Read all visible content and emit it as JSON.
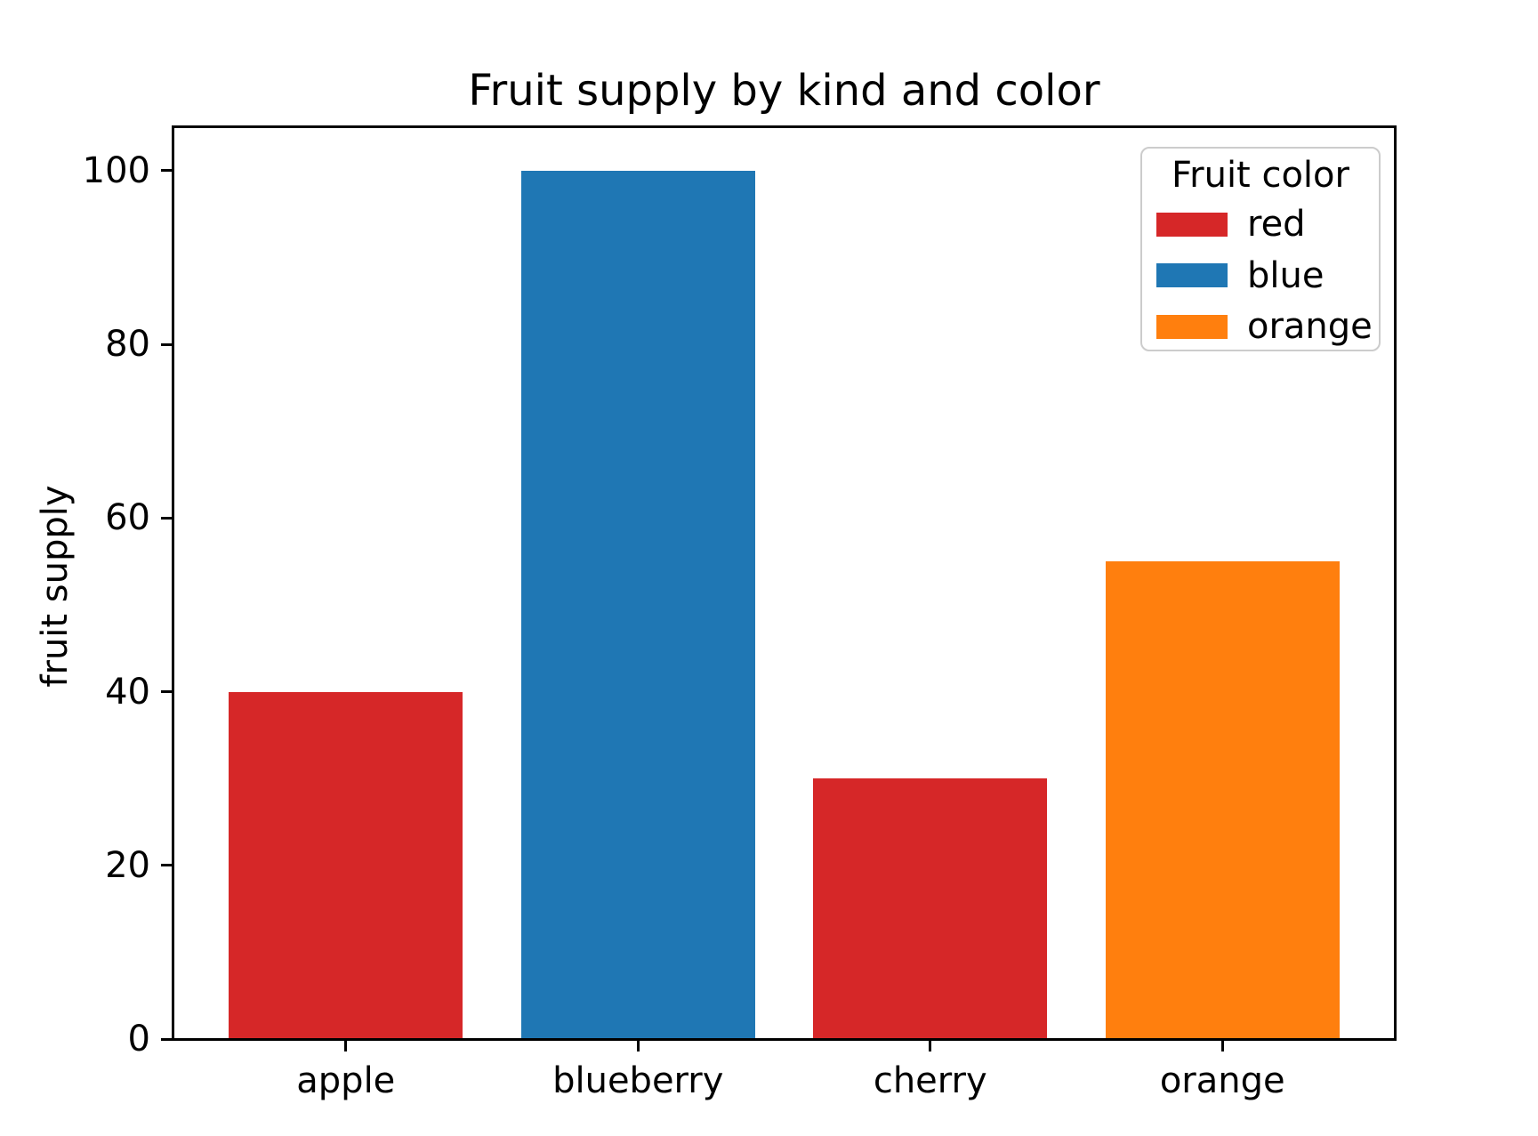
{
  "chart_data": {
    "type": "bar",
    "title": "Fruit supply by kind and color",
    "xlabel": "",
    "ylabel": "fruit supply",
    "categories": [
      "apple",
      "blueberry",
      "cherry",
      "orange"
    ],
    "values": [
      40,
      100,
      30,
      55
    ],
    "bar_colors": [
      "#d62728",
      "#1f77b4",
      "#d62728",
      "#ff7f0e"
    ],
    "bar_width": 0.8,
    "xlim": [
      -0.59,
      3.59
    ],
    "ylim": [
      0,
      105
    ],
    "yticks": [
      0,
      20,
      40,
      60,
      80,
      100
    ],
    "grid": false,
    "legend": {
      "title": "Fruit color",
      "position": "upper right",
      "entries": [
        {
          "label": "red",
          "color": "#d62728"
        },
        {
          "label": "blue",
          "color": "#1f77b4"
        },
        {
          "label": "orange",
          "color": "#ff7f0e"
        }
      ]
    },
    "colors": {
      "background": "#ffffff",
      "spine": "#000000",
      "text": "#000000",
      "legend_border": "#cccccc"
    }
  }
}
